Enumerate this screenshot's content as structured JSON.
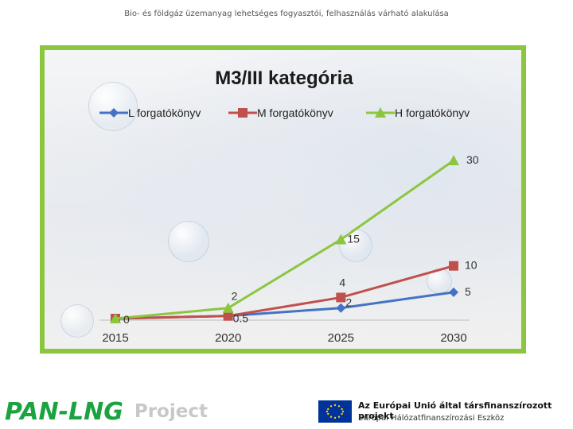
{
  "header": {
    "text": "Bio- és földgáz üzemanyag lehetséges fogyasztói, felhasználás várható alakulása"
  },
  "chart_data": {
    "type": "line",
    "title": "M3/III kategória",
    "xlabel": "",
    "ylabel": "",
    "categories": [
      "2015",
      "2020",
      "2025",
      "2030"
    ],
    "ylim": [
      0,
      32
    ],
    "grid": false,
    "legend_position": "top",
    "series": [
      {
        "name": "L forgatókönyv",
        "color": "#4472c4",
        "marker": "diamond",
        "values": [
          0,
          0.5,
          2,
          5
        ],
        "labels": [
          "",
          "0.5",
          "2",
          "5"
        ]
      },
      {
        "name": "M forgatókönyv",
        "color": "#c0504d",
        "marker": "square",
        "values": [
          0,
          0.5,
          4,
          10
        ],
        "labels": [
          "0",
          "",
          "4",
          "10"
        ]
      },
      {
        "name": "H forgatókönyv",
        "color": "#8cc63f",
        "marker": "triangle",
        "values": [
          0,
          2,
          15,
          30
        ],
        "labels": [
          "",
          "2",
          "15",
          "30"
        ]
      }
    ]
  },
  "footer": {
    "logo_text": "PAN-LNG",
    "project_text": "Project",
    "eu_line1": "Az Európai Unió által társfinanszírozott projekt",
    "eu_line2": "Európai Hálózatfinanszírozási Eszköz",
    "logo_color": "#1aa340",
    "eu_flag_color": "#003399"
  }
}
